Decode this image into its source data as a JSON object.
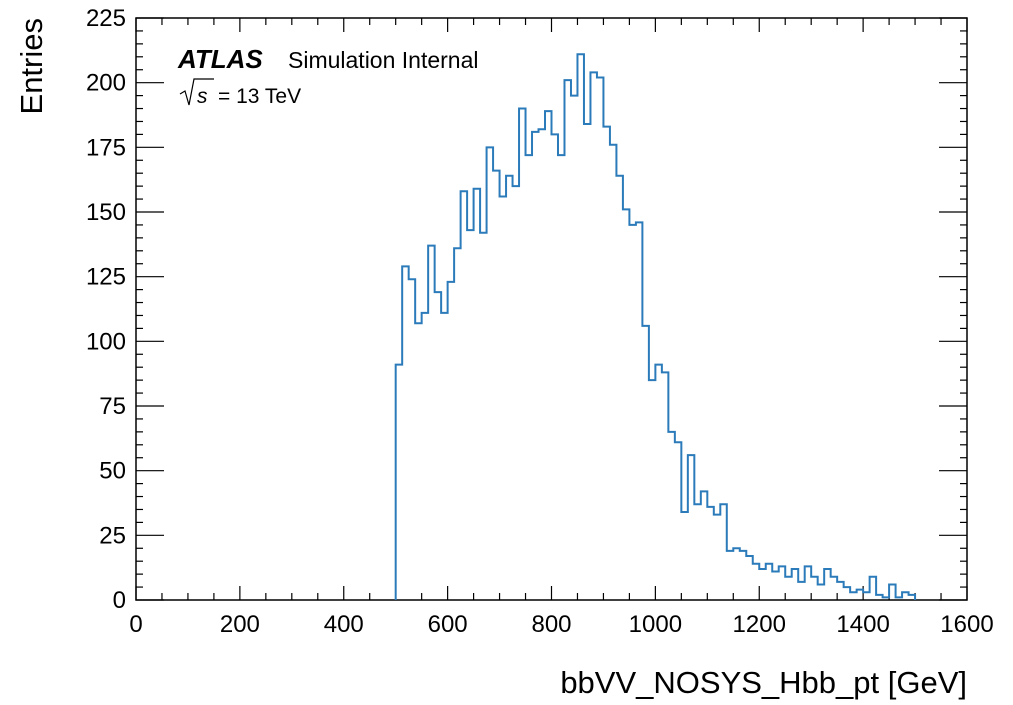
{
  "chart_data": {
    "type": "histogram",
    "title": "",
    "xlabel": "bbVV_NOSYS_Hbb_pt [GeV]",
    "ylabel": "Entries",
    "xlim": [
      0,
      1600
    ],
    "ylim": [
      0,
      225
    ],
    "x_ticks": [
      "0",
      "200",
      "400",
      "600",
      "800",
      "1000",
      "1200",
      "1400",
      "1600"
    ],
    "y_ticks": [
      "0",
      "25",
      "50",
      "75",
      "100",
      "125",
      "150",
      "175",
      "200",
      "225"
    ],
    "bin_width": 12.5,
    "series": [
      {
        "color": "#2b7bba",
        "bins": [
          [
            500,
            91
          ],
          [
            512.5,
            129
          ],
          [
            525,
            124
          ],
          [
            537.5,
            107
          ],
          [
            550,
            111
          ],
          [
            562.5,
            137
          ],
          [
            575,
            119
          ],
          [
            587.5,
            111
          ],
          [
            600,
            123
          ],
          [
            612.5,
            136
          ],
          [
            625,
            158
          ],
          [
            637.5,
            143
          ],
          [
            650,
            159
          ],
          [
            662.5,
            142
          ],
          [
            675,
            175
          ],
          [
            687.5,
            166
          ],
          [
            700,
            156
          ],
          [
            712.5,
            164
          ],
          [
            725,
            160
          ],
          [
            737.5,
            190
          ],
          [
            750,
            172
          ],
          [
            762.5,
            181
          ],
          [
            775,
            182
          ],
          [
            787.5,
            189
          ],
          [
            800,
            180
          ],
          [
            812.5,
            172
          ],
          [
            825,
            201
          ],
          [
            837.5,
            195
          ],
          [
            850,
            211
          ],
          [
            862.5,
            184
          ],
          [
            875,
            204
          ],
          [
            887.5,
            202
          ],
          [
            900,
            183
          ],
          [
            912.5,
            176
          ],
          [
            925,
            164
          ],
          [
            937.5,
            151
          ],
          [
            950,
            145
          ],
          [
            962.5,
            146
          ],
          [
            975,
            106
          ],
          [
            987.5,
            85
          ],
          [
            1000,
            91
          ],
          [
            1012.5,
            88
          ],
          [
            1025,
            65
          ],
          [
            1037.5,
            61
          ],
          [
            1050,
            34
          ],
          [
            1062.5,
            56
          ],
          [
            1075,
            37
          ],
          [
            1087.5,
            42
          ],
          [
            1100,
            36
          ],
          [
            1112.5,
            33
          ],
          [
            1125,
            37
          ],
          [
            1137.5,
            19
          ],
          [
            1150,
            20
          ],
          [
            1162.5,
            19
          ],
          [
            1175,
            17
          ],
          [
            1187.5,
            14
          ],
          [
            1200,
            12
          ],
          [
            1212.5,
            14
          ],
          [
            1225,
            11
          ],
          [
            1237.5,
            13
          ],
          [
            1250,
            9
          ],
          [
            1262.5,
            12
          ],
          [
            1275,
            7
          ],
          [
            1287.5,
            13
          ],
          [
            1300,
            9
          ],
          [
            1312.5,
            6
          ],
          [
            1325,
            12
          ],
          [
            1337.5,
            9
          ],
          [
            1350,
            7
          ],
          [
            1362.5,
            5
          ],
          [
            1375,
            3
          ],
          [
            1387.5,
            4
          ],
          [
            1400,
            3
          ],
          [
            1412.5,
            9
          ],
          [
            1425,
            2
          ],
          [
            1437.5,
            1
          ],
          [
            1450,
            6
          ],
          [
            1462.5,
            1
          ],
          [
            1475,
            3
          ],
          [
            1487.5,
            2
          ]
        ]
      }
    ],
    "annotations": {
      "atlas_label": "ATLAS",
      "status": "Simulation Internal",
      "sqrt": "s",
      "energy": "= 13 TeV"
    },
    "legend": "none"
  }
}
